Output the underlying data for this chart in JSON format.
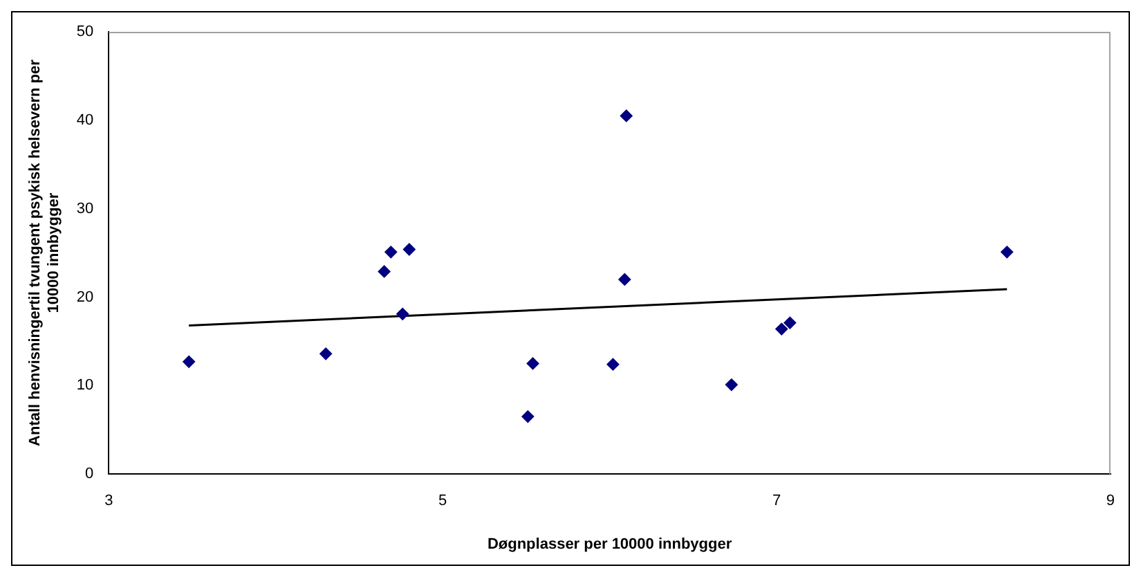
{
  "chart_data": {
    "type": "scatter",
    "xlabel": "Døgnplasser per 10000 innbygger",
    "ylabel": "Antall henvisningertil tvungent psykisk helsevern per\n10000 innbygger",
    "xlim": [
      3,
      9
    ],
    "xticks": [
      3,
      5,
      7,
      9
    ],
    "ylim": [
      0,
      50
    ],
    "yticks": [
      0,
      10,
      20,
      30,
      40,
      50
    ],
    "grid": false,
    "legend": false,
    "marker": "diamond",
    "series": [
      {
        "color": "#000080",
        "x": [
          3.48,
          4.3,
          4.65,
          4.69,
          4.8,
          4.76,
          5.51,
          5.54,
          6.1,
          6.09,
          6.02,
          6.73,
          7.03,
          7.08,
          8.38
        ],
        "values": [
          12.7,
          13.6,
          22.9,
          25.1,
          25.4,
          18.1,
          6.5,
          12.5,
          40.5,
          22.0,
          12.4,
          10.1,
          16.4,
          17.1,
          25.1
        ]
      },
      {
        "type": "line",
        "color": "#000000",
        "marker": "none",
        "line_style": "solid",
        "x": [
          3.48,
          8.38
        ],
        "values": [
          16.8,
          20.9
        ]
      }
    ]
  }
}
